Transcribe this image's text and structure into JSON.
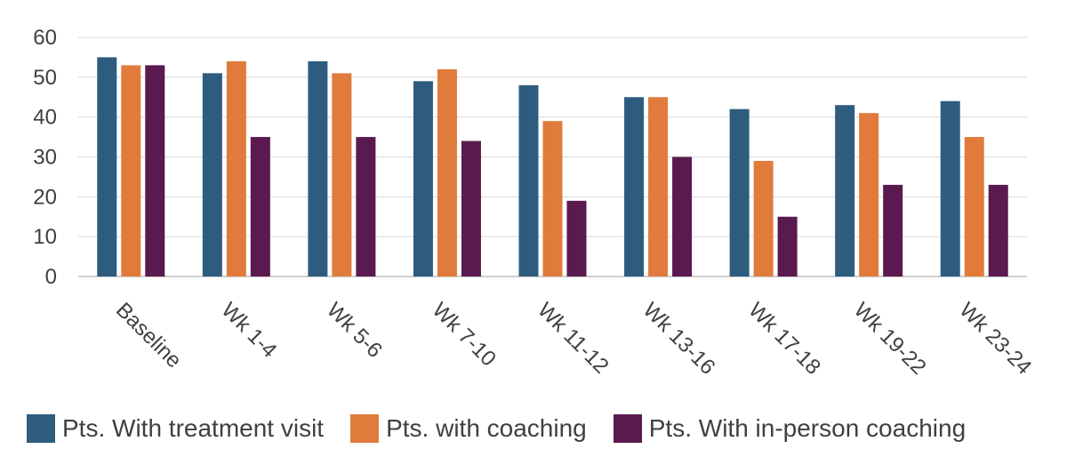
{
  "chart_data": {
    "type": "bar",
    "categories": [
      "Baseline",
      "Wk 1-4",
      "Wk 5-6",
      "Wk 7-10",
      "Wk 11-12",
      "Wk 13-16",
      "Wk 17-18",
      "Wk 19-22",
      "Wk 23-24"
    ],
    "series": [
      {
        "name": "Pts. With treatment visit",
        "color": "#2e5c7f",
        "values": [
          55,
          51,
          54,
          49,
          48,
          45,
          42,
          43,
          44
        ]
      },
      {
        "name": "Pts. with coaching",
        "color": "#e07b3c",
        "values": [
          53,
          54,
          51,
          52,
          39,
          45,
          29,
          41,
          35
        ]
      },
      {
        "name": "Pts. With in-person coaching",
        "color": "#5a1a4f",
        "values": [
          53,
          35,
          35,
          34,
          19,
          30,
          15,
          23,
          23
        ]
      }
    ],
    "ylim": [
      0,
      60
    ],
    "yticks": [
      0,
      10,
      20,
      30,
      40,
      50,
      60
    ],
    "grid": true,
    "legend_position": "bottom"
  }
}
